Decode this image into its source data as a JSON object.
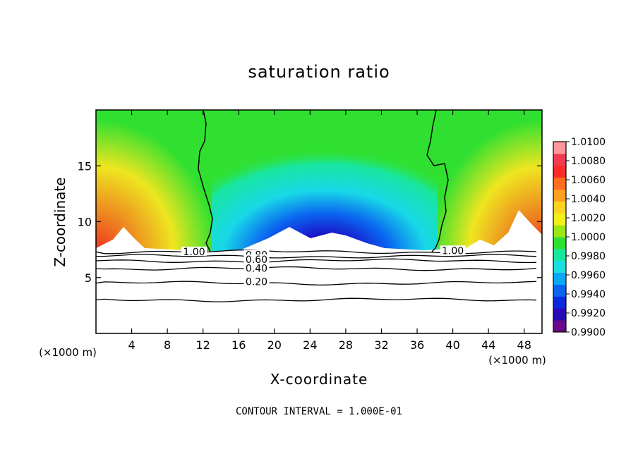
{
  "chart_data": {
    "type": "heatmap",
    "title": "saturation ratio",
    "xlabel": "X-coordinate",
    "ylabel": "Z-coordinate",
    "x_unit_left": "(×1000 m)",
    "x_unit_right": "(×1000 m)",
    "xlim": [
      0,
      50
    ],
    "ylim": [
      0,
      20
    ],
    "xticks": [
      4,
      8,
      12,
      16,
      20,
      24,
      28,
      32,
      36,
      40,
      44,
      48
    ],
    "yticks": [
      5,
      10,
      15
    ],
    "colorbar": {
      "min": 0.99,
      "max": 1.01,
      "labels": [
        "1.0100",
        "1.0080",
        "1.0060",
        "1.0040",
        "1.0020",
        "1.0000",
        "0.9980",
        "0.9960",
        "0.9940",
        "0.9920",
        "0.9900"
      ],
      "colors": [
        "#6a0a8a",
        "#2a0ab4",
        "#0a28dc",
        "#0a64f0",
        "#0aa8f5",
        "#18e0e0",
        "#18e6a0",
        "#30e030",
        "#9ce614",
        "#f0f018",
        "#ffd21e",
        "#ffa01e",
        "#ff6e1e",
        "#ff2a2a",
        "#f03c50",
        "#ff96a0"
      ]
    },
    "contour_lines": [
      {
        "label": "1.00",
        "z": 7.3
      },
      {
        "label": "0.80",
        "z": 6.9
      },
      {
        "label": "0.60",
        "z": 6.5
      },
      {
        "label": "0.40",
        "z": 5.8
      },
      {
        "label": "0.20",
        "z": 4.5
      },
      {
        "label": "",
        "z": 3.0
      }
    ],
    "contour_line_labels": [
      "1.00",
      "0.80",
      "0.60",
      "0.40",
      "0.20",
      "1.00"
    ],
    "contour_interval_text": "CONTOUR INTERVAL = 1.000E-01"
  }
}
